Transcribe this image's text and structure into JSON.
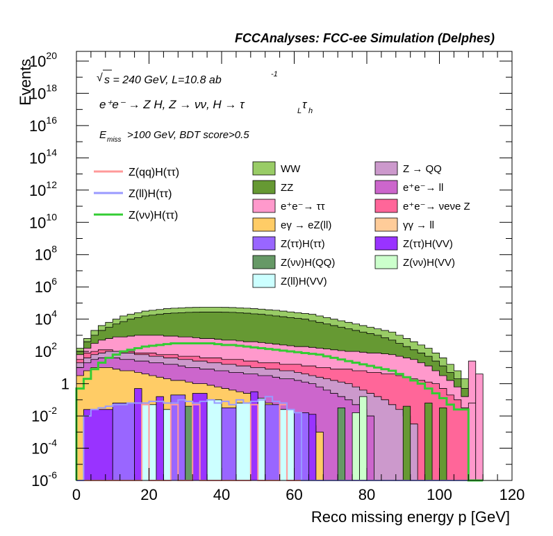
{
  "chart_data": {
    "type": "area",
    "title": "FCCAnalyses: FCC-ee Simulation (Delphes)",
    "xlabel": "Reco missing energy p [GeV]",
    "ylabel": "Events",
    "xlim": [
      0,
      120
    ],
    "ylim_log10": [
      -6,
      20.6
    ],
    "yscale": "log",
    "grid": false,
    "legend_placement": "upper middle",
    "x_ticks": [
      "0",
      "20",
      "40",
      "60",
      "80",
      "100",
      "120"
    ],
    "y_ticks": [
      {
        "base": "10",
        "exp": "-6"
      },
      {
        "base": "10",
        "exp": "-4"
      },
      {
        "base": "10",
        "exp": "-2"
      },
      {
        "base": "1",
        "exp": ""
      },
      {
        "base": "10",
        "exp": "2"
      },
      {
        "base": "10",
        "exp": "4"
      },
      {
        "base": "10",
        "exp": "6"
      },
      {
        "base": "10",
        "exp": "8"
      },
      {
        "base": "10",
        "exp": "10"
      },
      {
        "base": "10",
        "exp": "12"
      },
      {
        "base": "10",
        "exp": "14"
      },
      {
        "base": "10",
        "exp": "16"
      },
      {
        "base": "10",
        "exp": "18"
      },
      {
        "base": "10",
        "exp": "20"
      }
    ],
    "annotations": {
      "sqrt_s": "s = 240 GeV, L=10.8 ab",
      "sqrt_s_exp": "-1",
      "process": "e⁺e⁻ → Z H, Z → νν, H → τ",
      "process_sub1": "L",
      "process_mid": "τ",
      "process_sub2": "h",
      "emiss": "E",
      "emiss_sub": "miss",
      "cut": ">100 GeV, BDT score>0.5"
    },
    "bin_edges": [
      0,
      2,
      4,
      6,
      8,
      10,
      12,
      14,
      16,
      18,
      20,
      22,
      24,
      26,
      28,
      30,
      32,
      34,
      36,
      38,
      40,
      42,
      44,
      46,
      48,
      50,
      52,
      54,
      56,
      58,
      60,
      62,
      64,
      66,
      68,
      70,
      72,
      74,
      76,
      78,
      80,
      82,
      84,
      86,
      88,
      90,
      92,
      94,
      96,
      98,
      100,
      102,
      104,
      106,
      108,
      110,
      112
    ],
    "stack_top_log10": {
      "WW": [
        2.2,
        2.8,
        3.3,
        3.6,
        3.8,
        4.0,
        4.2,
        4.3,
        4.4,
        4.5,
        4.55,
        4.6,
        4.65,
        4.68,
        4.7,
        4.72,
        4.73,
        4.74,
        4.74,
        4.74,
        4.73,
        4.72,
        4.7,
        4.68,
        4.65,
        4.62,
        4.58,
        4.55,
        4.5,
        4.45,
        4.4,
        4.35,
        4.3,
        4.2,
        4.1,
        4.0,
        3.9,
        3.8,
        3.7,
        3.6,
        3.5,
        3.4,
        3.3,
        3.2,
        3.0,
        2.8,
        2.6,
        2.4,
        2.2,
        1.9,
        1.6,
        1.2,
        0.8,
        0.3,
        -1.5,
        -6,
        -6
      ],
      "ZZ": [
        2.0,
        2.6,
        3.0,
        3.3,
        3.5,
        3.7,
        3.85,
        4.0,
        4.1,
        4.2,
        4.25,
        4.3,
        4.35,
        4.38,
        4.4,
        4.42,
        4.43,
        4.44,
        4.44,
        4.44,
        4.43,
        4.42,
        4.4,
        4.37,
        4.33,
        4.3,
        4.25,
        4.2,
        4.15,
        4.1,
        4.05,
        4.0,
        3.9,
        3.8,
        3.7,
        3.6,
        3.5,
        3.4,
        3.3,
        3.2,
        3.1,
        3.0,
        2.85,
        2.7,
        2.5,
        2.3,
        2.1,
        1.9,
        1.7,
        1.4,
        1.1,
        0.7,
        0.3,
        -0.3,
        -1.7,
        -6,
        -6
      ],
      "ee_tautau": [
        1.8,
        2.2,
        2.5,
        2.7,
        2.8,
        2.9,
        2.9,
        2.95,
        3.0,
        3.0,
        3.0,
        3.0,
        2.95,
        2.95,
        2.9,
        2.9,
        2.85,
        2.8,
        2.8,
        2.75,
        2.7,
        2.7,
        2.65,
        2.6,
        2.6,
        2.55,
        2.5,
        2.45,
        2.4,
        2.35,
        2.3,
        2.3,
        2.25,
        2.2,
        2.15,
        2.1,
        2.05,
        2.0,
        2.0,
        1.95,
        1.9,
        1.9,
        1.85,
        1.8,
        1.7,
        1.6,
        1.5,
        1.3,
        1.1,
        0.8,
        0.5,
        0.2,
        -0.2,
        -0.8,
        1.4,
        -6,
        -6
      ],
      "ee_nunuZ": [
        1.5,
        1.9,
        2.0,
        2.1,
        2.1,
        2.0,
        2.0,
        2.0,
        1.9,
        1.9,
        1.9,
        1.8,
        1.8,
        1.8,
        1.7,
        1.7,
        1.7,
        1.6,
        1.6,
        1.6,
        1.5,
        1.5,
        1.5,
        1.4,
        1.4,
        1.3,
        1.3,
        1.3,
        1.2,
        1.2,
        1.2,
        1.1,
        1.1,
        1.0,
        1.0,
        0.9,
        0.9,
        0.9,
        0.8,
        0.8,
        0.7,
        0.7,
        0.6,
        0.6,
        0.5,
        0.4,
        0.3,
        0.2,
        0.1,
        0.0,
        -0.3,
        -0.7,
        -1.0,
        -1.5,
        -6,
        -6,
        -6
      ],
      "Z_QQ": [
        1.3,
        1.6,
        1.8,
        1.9,
        2.0,
        2.0,
        1.9,
        1.9,
        1.8,
        1.8,
        1.7,
        1.7,
        1.6,
        1.6,
        1.5,
        1.5,
        1.4,
        1.4,
        1.3,
        1.3,
        1.2,
        1.2,
        1.1,
        1.1,
        1.0,
        1.0,
        0.9,
        0.9,
        0.8,
        0.8,
        0.7,
        0.6,
        0.5,
        0.4,
        0.3,
        0.2,
        0.1,
        0.0,
        -0.2,
        -0.4,
        -0.6,
        -0.8,
        -1.0,
        -1.3,
        -1.6,
        -2.0,
        -2.5,
        -6,
        -6,
        -6,
        -6,
        -6,
        -6,
        -6,
        -6,
        -6,
        -6
      ],
      "ee_ll": [
        1.0,
        1.3,
        1.5,
        1.6,
        1.6,
        1.6,
        1.5,
        1.5,
        1.4,
        1.4,
        1.3,
        1.3,
        1.2,
        1.2,
        1.1,
        1.0,
        1.0,
        0.9,
        0.9,
        0.8,
        0.8,
        0.7,
        0.7,
        0.6,
        0.6,
        0.5,
        0.5,
        0.4,
        0.3,
        0.3,
        0.2,
        0.1,
        0.0,
        -0.2,
        -0.4,
        -0.6,
        -0.8,
        -1.0,
        -1.3,
        -1.6,
        -2.0,
        -6,
        -6,
        -6,
        -6,
        -6,
        -6,
        -6,
        -6,
        -6,
        -6,
        -6,
        -6,
        -6,
        -6,
        -6,
        -6
      ],
      "gamma_eZll": [
        0.5,
        0.8,
        1.0,
        1.0,
        1.0,
        0.9,
        0.8,
        0.8,
        0.7,
        0.6,
        0.5,
        0.4,
        0.3,
        0.2,
        0.2,
        0.1,
        0.0,
        0.0,
        -0.1,
        -0.2,
        -0.3,
        -0.4,
        -0.5,
        -0.6,
        -0.8,
        -1.0,
        -1.2,
        -1.4,
        -1.6,
        -1.8,
        -2.0,
        -2.3,
        -2.6,
        -3.0,
        -6,
        -6,
        -6,
        -6,
        -6,
        -6,
        -6,
        -6,
        -6,
        -6,
        -6,
        -6,
        -6,
        -6,
        -6,
        -6,
        -6,
        -6,
        -6,
        -6,
        -6,
        -6,
        -6
      ]
    },
    "curves_log10": {
      "Z(vv)H(tautau)": [
        -0.3,
        0.3,
        0.9,
        1.3,
        1.6,
        1.8,
        2.0,
        2.1,
        2.2,
        2.3,
        2.35,
        2.4,
        2.45,
        2.5,
        2.5,
        2.5,
        2.5,
        2.5,
        2.5,
        2.45,
        2.4,
        2.4,
        2.35,
        2.3,
        2.25,
        2.2,
        2.15,
        2.1,
        2.05,
        2.0,
        1.95,
        1.9,
        1.85,
        1.8,
        1.7,
        1.6,
        1.5,
        1.4,
        1.3,
        1.2,
        1.1,
        1.0,
        0.9,
        0.8,
        0.6,
        0.4,
        0.2,
        0.0,
        -0.3,
        -0.6,
        -0.9,
        -1.3,
        -1.6,
        -1.6,
        -6,
        -6,
        -6
      ],
      "Z(ll)H(tautau)": [
        -6,
        -2.0,
        -1.6,
        -1.5,
        -1.4,
        -1.3,
        -1.3,
        -1.2,
        -1.2,
        -1.2,
        -1.1,
        -1.1,
        -1.2,
        -1.2,
        -1.0,
        -1.1,
        -1.2,
        -1.1,
        -1.0,
        -1.2,
        -1.1,
        -1.3,
        -1.0,
        -1.2,
        -1.1,
        -1.0,
        -0.8,
        -1.1,
        -1.2,
        -1.6,
        -1.8,
        -6,
        -6,
        -6,
        -6,
        -6,
        -6,
        -6,
        -6,
        -6,
        -6,
        -6,
        -6,
        -6,
        -6,
        -6,
        -6,
        -6,
        -6,
        -6,
        -6,
        -6,
        -6,
        -6,
        -6,
        -6,
        -6
      ],
      "Z(qq)H(tautau)": [
        -6,
        -6,
        -6,
        -6,
        -6,
        -6,
        -6,
        -6,
        -6,
        -1.3,
        -6,
        -6,
        -6,
        -1.3,
        -6,
        -6,
        -1.3,
        -6,
        -6,
        -6,
        -6,
        -6,
        -6,
        -6,
        -1.3,
        -6,
        -6,
        -6,
        -1.3,
        -6,
        -6,
        -6,
        -6,
        -6,
        -6,
        -6,
        -6,
        -6,
        -6,
        -6,
        -6,
        -6,
        -6,
        -6,
        -6,
        -6,
        -6,
        -6,
        -6,
        -6,
        -6,
        -6,
        -6,
        -6,
        -6,
        -6,
        -6
      ]
    },
    "series": [
      {
        "name": "WW",
        "color": "#99cc66"
      },
      {
        "name": "ZZ",
        "color": "#669933"
      },
      {
        "name": "e⁺e⁻→ ττ",
        "color": "#ff99cc"
      },
      {
        "name": "eγ → eZ(ll)",
        "color": "#ffcc66"
      },
      {
        "name": "Z(ττ)H(ττ)",
        "color": "#9966ff"
      },
      {
        "name": "Z(νν)H(QQ)",
        "color": "#669966"
      },
      {
        "name": "Z(ll)H(VV)",
        "color": "#ccffff"
      },
      {
        "name": "Z → QQ",
        "color": "#cc99cc"
      },
      {
        "name": "e⁺e⁻→ ll",
        "color": "#cc66cc"
      },
      {
        "name": "e⁺e⁻→ νeνe Z",
        "color": "#ff6699"
      },
      {
        "name": "γγ → ll",
        "color": "#ffcc99"
      },
      {
        "name": "Z(ττ)H(VV)",
        "color": "#9933ff"
      },
      {
        "name": "Z(νν)H(VV)",
        "color": "#ccffcc"
      }
    ],
    "line_series": [
      {
        "name": "Z(qq)H(ττ)",
        "color": "#ff9999"
      },
      {
        "name": "Z(ll)H(ττ)",
        "color": "#9999ff"
      },
      {
        "name": "Z(νν)H(ττ)",
        "color": "#33cc33"
      }
    ]
  }
}
